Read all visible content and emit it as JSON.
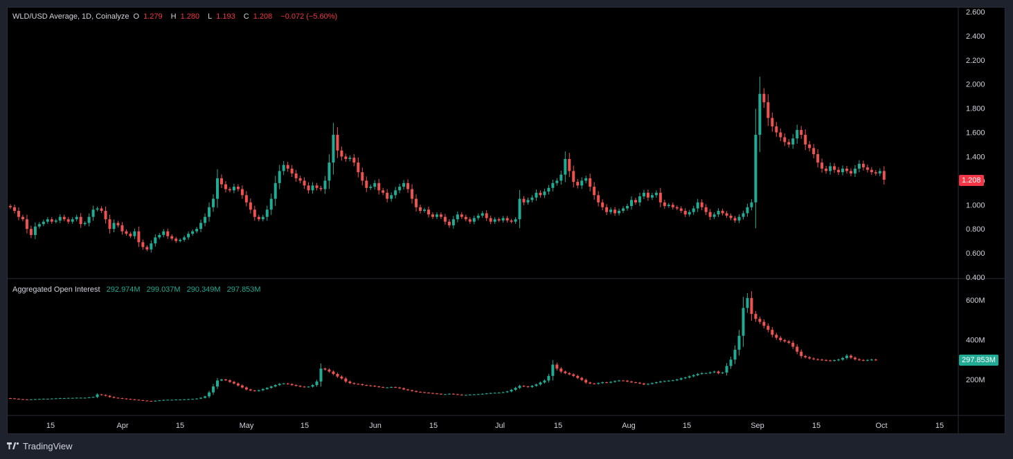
{
  "header": {
    "title": "WLD/USD Average, 1D, Coinalyze",
    "open_label": "O",
    "open": "1.279",
    "high_label": "H",
    "high": "1.280",
    "low_label": "L",
    "low": "1.193",
    "close_label": "C",
    "close": "1.208",
    "change": "−0.072 (−5.60%)"
  },
  "oi_header": {
    "title": "Aggregated Open Interest",
    "open": "292.974M",
    "high": "299.037M",
    "low": "290.349M",
    "close": "297.853M"
  },
  "price_badge": "1.208",
  "oi_badge": "297.853M",
  "branding": {
    "name": "TradingView",
    "icon": "tradingview-logo-icon"
  },
  "colors": {
    "up": "#22ab94",
    "down": "#ef5350",
    "grid": "#2a2e39",
    "text": "#d1d4dc",
    "background": "#000000"
  },
  "chart_data": [
    {
      "type": "candlestick",
      "title": "WLD/USD Average, 1D, Coinalyze",
      "x_tick_labels": [
        "15",
        "Apr",
        "15",
        "May",
        "15",
        "Jun",
        "15",
        "Jul",
        "15",
        "Aug",
        "15",
        "Sep",
        "15",
        "Oct",
        "15"
      ],
      "y_tick_labels": [
        "0.400",
        "0.600",
        "0.800",
        "1.000",
        "1.200",
        "1.400",
        "1.600",
        "1.800",
        "2.000",
        "2.200",
        "2.400",
        "2.600"
      ],
      "ylim": [
        0.4,
        2.6
      ],
      "grid": false,
      "last_value": 1.208,
      "close_series": [
        0.98,
        0.95,
        0.9,
        0.88,
        0.8,
        0.75,
        0.82,
        0.84,
        0.86,
        0.88,
        0.86,
        0.87,
        0.9,
        0.88,
        0.86,
        0.88,
        0.9,
        0.84,
        0.85,
        0.9,
        0.96,
        0.97,
        0.95,
        0.88,
        0.8,
        0.85,
        0.83,
        0.78,
        0.76,
        0.74,
        0.78,
        0.69,
        0.65,
        0.63,
        0.68,
        0.73,
        0.75,
        0.78,
        0.74,
        0.72,
        0.7,
        0.71,
        0.73,
        0.76,
        0.78,
        0.8,
        0.85,
        0.9,
        0.98,
        1.05,
        1.22,
        1.17,
        1.13,
        1.12,
        1.15,
        1.13,
        1.08,
        1.02,
        0.96,
        0.9,
        0.88,
        0.9,
        0.96,
        1.05,
        1.18,
        1.28,
        1.33,
        1.3,
        1.26,
        1.22,
        1.2,
        1.16,
        1.12,
        1.16,
        1.14,
        1.13,
        1.2,
        1.35,
        1.58,
        1.45,
        1.4,
        1.38,
        1.39,
        1.35,
        1.27,
        1.2,
        1.14,
        1.15,
        1.18,
        1.12,
        1.1,
        1.05,
        1.08,
        1.12,
        1.15,
        1.18,
        1.13,
        1.05,
        0.98,
        0.95,
        0.96,
        0.92,
        0.9,
        0.92,
        0.9,
        0.86,
        0.83,
        0.88,
        0.92,
        0.9,
        0.88,
        0.86,
        0.89,
        0.91,
        0.93,
        0.89,
        0.86,
        0.88,
        0.87,
        0.89,
        0.87,
        0.86,
        0.88,
        1.05,
        1.02,
        1.04,
        1.06,
        1.1,
        1.08,
        1.11,
        1.14,
        1.18,
        1.2,
        1.25,
        1.38,
        1.28,
        1.19,
        1.16,
        1.2,
        1.22,
        1.15,
        1.08,
        1.02,
        0.98,
        0.94,
        0.96,
        0.93,
        0.95,
        0.97,
        0.99,
        1.04,
        1.02,
        1.07,
        1.1,
        1.06,
        1.08,
        1.1,
        1.02,
        0.99,
        1.0,
        0.98,
        0.97,
        0.95,
        0.92,
        0.94,
        0.97,
        1.02,
        0.98,
        0.94,
        0.9,
        0.92,
        0.95,
        0.93,
        0.91,
        0.89,
        0.87,
        0.9,
        0.93,
        0.98,
        1.02,
        1.58,
        1.92,
        1.85,
        1.72,
        1.65,
        1.6,
        1.56,
        1.52,
        1.5,
        1.55,
        1.62,
        1.58,
        1.5,
        1.47,
        1.42,
        1.35,
        1.3,
        1.28,
        1.32,
        1.29,
        1.27,
        1.3,
        1.28,
        1.26,
        1.3,
        1.34,
        1.31,
        1.29,
        1.27,
        1.26,
        1.28,
        1.208
      ]
    },
    {
      "type": "candlestick",
      "title": "Aggregated Open Interest",
      "y_tick_labels": [
        "200M",
        "400M",
        "600M"
      ],
      "ylim": [
        0,
        680
      ],
      "grid": false,
      "last_value": 297.853,
      "close_series": [
        105,
        103,
        101,
        100,
        99,
        100,
        101,
        102,
        103,
        103,
        104,
        105,
        106,
        106,
        107,
        107,
        108,
        108,
        108,
        110,
        112,
        125,
        122,
        118,
        112,
        108,
        106,
        104,
        102,
        100,
        98,
        96,
        94,
        92,
        91,
        93,
        95,
        97,
        98,
        98,
        99,
        99,
        100,
        101,
        102,
        104,
        108,
        115,
        135,
        165,
        195,
        200,
        196,
        188,
        180,
        170,
        160,
        150,
        145,
        142,
        146,
        152,
        158,
        165,
        172,
        178,
        180,
        177,
        172,
        168,
        164,
        162,
        164,
        172,
        190,
        255,
        250,
        240,
        228,
        215,
        205,
        190,
        182,
        178,
        176,
        172,
        170,
        168,
        165,
        162,
        160,
        160,
        162,
        160,
        156,
        150,
        146,
        142,
        138,
        136,
        134,
        132,
        130,
        128,
        126,
        126,
        128,
        126,
        124,
        122,
        122,
        124,
        125,
        126,
        128,
        130,
        132,
        133,
        134,
        136,
        140,
        148,
        158,
        168,
        165,
        162,
        168,
        175,
        185,
        195,
        218,
        275,
        255,
        240,
        232,
        226,
        218,
        208,
        198,
        185,
        180,
        178,
        182,
        186,
        184,
        188,
        192,
        195,
        194,
        190,
        186,
        184,
        180,
        175,
        178,
        182,
        186,
        190,
        192,
        194,
        196,
        200,
        206,
        210,
        216,
        222,
        228,
        232,
        232,
        236,
        240,
        232,
        235,
        268,
        300,
        350,
        420,
        560,
        610,
        530,
        505,
        490,
        470,
        450,
        425,
        410,
        398,
        392,
        385,
        365,
        340,
        318,
        312,
        306,
        302,
        300,
        298,
        296,
        295,
        297,
        300,
        308,
        320,
        310,
        302,
        298,
        296,
        298,
        300,
        297.853
      ]
    }
  ]
}
